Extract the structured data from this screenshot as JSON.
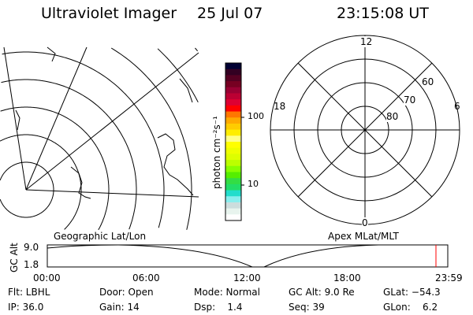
{
  "header": {
    "title": "Ultraviolet Imager",
    "date": "25 Jul 07",
    "time": "23:15:08 UT"
  },
  "colorbar": {
    "label": "photon cm⁻²s⁻¹",
    "ticks": [
      "100",
      "10"
    ],
    "colors": [
      "#000033",
      "#330022",
      "#550022",
      "#770022",
      "#990033",
      "#bb0033",
      "#dd0033",
      "#ff0000",
      "#ff7700",
      "#ffaa00",
      "#ffcc00",
      "#ffee00",
      "#ffff88",
      "#ffff00",
      "#eeff00",
      "#ddff00",
      "#bbff00",
      "#88ff00",
      "#55ee00",
      "#33dd44",
      "#22dd66",
      "#22ddcc",
      "#88eeee",
      "#ccdddd",
      "#e8f4ee",
      "#ffffff"
    ]
  },
  "polar": {
    "mlt_labels": {
      "top": "12",
      "bottom": "0",
      "left": "18",
      "right": "6"
    },
    "lat_labels": [
      "60",
      "70",
      "80"
    ]
  },
  "timeline": {
    "left_title": "Geographic Lat/Lon",
    "right_title": "Apex MLat/MLT",
    "ylabel": "GC Alt",
    "y_ticks": [
      "9.0",
      "1.8"
    ],
    "x_ticks": [
      "00:00",
      "06:00",
      "12:00",
      "18:00",
      "23:59"
    ],
    "marker_color": "#ff0000"
  },
  "status": {
    "row1": [
      "Flt: LBHL",
      "Door: Open",
      "Mode: Normal",
      "GC Alt: 9.0 Re",
      "GLat: −54.3"
    ],
    "row2": [
      "IP: 36.0",
      "Gain: 14",
      "Dsp:    1.4",
      "Seq: 39",
      "GLon:    6.2"
    ]
  }
}
